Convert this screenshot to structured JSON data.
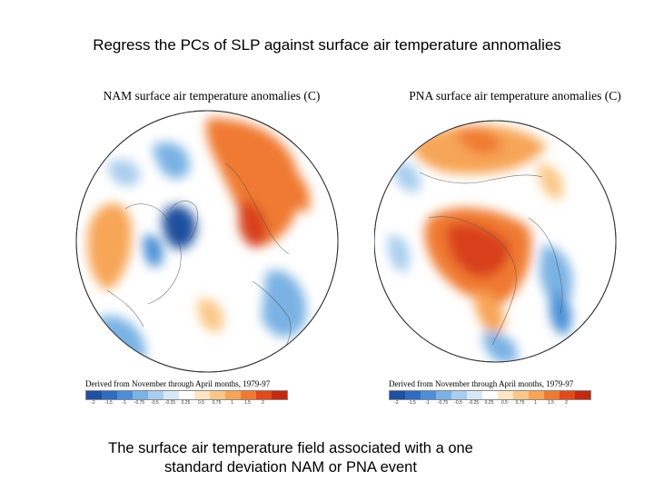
{
  "slide": {
    "title": "Regress the PCs of SLP against surface air temperature annomalies",
    "footer_line1": "The surface air temperature field associated with a one",
    "footer_line2": "standard deviation NAM or PNA event"
  },
  "maps": [
    {
      "id": "nam",
      "title": "NAM surface air temperature anomalies (C)",
      "caption": "Derived from November through April months, 1979-97",
      "ticks": [
        "-2",
        "-1.5",
        "-1",
        "-0.75",
        "-0.5",
        "-0.25",
        "0.25",
        "0.5",
        "0.75",
        "1",
        "1.5",
        "2"
      ]
    },
    {
      "id": "pna",
      "title": "PNA surface air temperature anomalies (C)",
      "caption": "Derived from November through April months, 1979-97",
      "ticks": [
        "-2",
        "-1.5",
        "-1",
        "-0.75",
        "-0.5",
        "-0.25",
        "0.25",
        "0.5",
        "0.75",
        "1",
        "1.5",
        "2"
      ]
    }
  ],
  "colors": {
    "scale": [
      "#1f4fa0",
      "#2f6cc0",
      "#4a8fd6",
      "#7ab2e4",
      "#a9cdee",
      "#d6e8f6",
      "#ffffff",
      "#fde6c4",
      "#fbc888",
      "#f7a556",
      "#f07a30",
      "#e04a1c",
      "#c22a10"
    ]
  }
}
